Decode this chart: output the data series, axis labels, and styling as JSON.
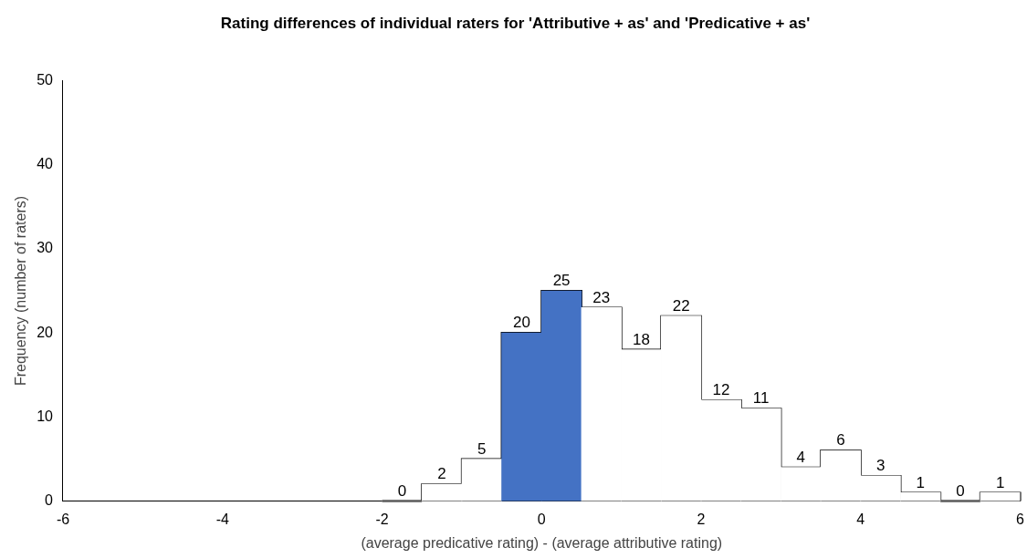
{
  "chart_data": {
    "type": "histogram",
    "title": "Rating differences of individual raters for 'Attributive + as' and 'Predicative + as'",
    "xlabel": "(average predicative rating) - (average attributive rating)",
    "ylabel": "Frequency (number of raters)",
    "bins": [
      -2,
      -1.5,
      -1,
      -0.5,
      0,
      0.5,
      1,
      1.5,
      2,
      2.5,
      3,
      3.5,
      4,
      4.5,
      5,
      5.5,
      6
    ],
    "values": [
      0,
      2,
      5,
      20,
      25,
      23,
      18,
      22,
      12,
      11,
      4,
      6,
      3,
      1,
      0,
      1
    ],
    "colors": [
      "#ffffff",
      "#ffffff",
      "#ffffff",
      "#4472c4",
      "#4472c4",
      "#ffffff",
      "#ffffff",
      "#ffffff",
      "#ffffff",
      "#ffffff",
      "#ffffff",
      "#ffffff",
      "#ffffff",
      "#ffffff",
      "#ffffff",
      "#ffffff"
    ],
    "data_labels": true,
    "xlim": [
      -6,
      6
    ],
    "xticks": [
      -6,
      -4,
      -2,
      0,
      2,
      4,
      6
    ],
    "ylim": [
      0,
      50
    ],
    "yticks": [
      0,
      10,
      20,
      30,
      40,
      50
    ]
  }
}
